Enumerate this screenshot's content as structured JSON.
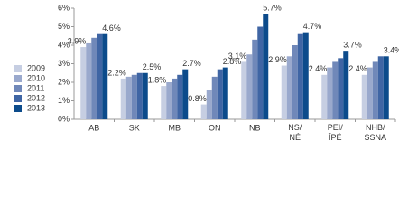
{
  "chart_data": {
    "type": "bar",
    "categories": [
      "AB",
      "SK",
      "MB",
      "ON",
      "NB",
      "NS/NÉ",
      "PEI/ÎPÉ",
      "NHB/SSNA"
    ],
    "series": [
      {
        "name": "2009",
        "color": "#c6cee2",
        "values": [
          3.9,
          2.2,
          1.8,
          0.8,
          3.1,
          2.9,
          2.4,
          2.4
        ],
        "value_labels": [
          "3.9%",
          "2.2%",
          "1.8%",
          "0.8%",
          "3.1%",
          "2.9%",
          "2.4%",
          "2.4%"
        ]
      },
      {
        "name": "2010",
        "color": "#9aa9cd",
        "values": [
          4.1,
          2.3,
          2.0,
          1.6,
          3.5,
          3.4,
          2.8,
          2.8
        ]
      },
      {
        "name": "2011",
        "color": "#7088b9",
        "values": [
          4.4,
          2.4,
          2.2,
          2.3,
          4.3,
          4.0,
          3.1,
          3.1
        ]
      },
      {
        "name": "2012",
        "color": "#3f65a4",
        "values": [
          4.6,
          2.5,
          2.4,
          2.7,
          5.0,
          4.6,
          3.3,
          3.4
        ]
      },
      {
        "name": "2013",
        "color": "#0c4b8b",
        "values": [
          4.6,
          2.5,
          2.7,
          2.8,
          5.7,
          4.7,
          3.7,
          3.4
        ],
        "value_labels": [
          "4.6%",
          "2.5%",
          "2.7%",
          "2.8%",
          "5.7%",
          "4.7%",
          "3.7%",
          "3.4%"
        ]
      }
    ],
    "ylim": [
      0,
      6
    ],
    "yticks": [
      {
        "value": 0,
        "label": "0%"
      },
      {
        "value": 1,
        "label": "1%"
      },
      {
        "value": 2,
        "label": "2%"
      },
      {
        "value": 3,
        "label": "3%"
      },
      {
        "value": 4,
        "label": "4%"
      },
      {
        "value": 5,
        "label": "5%"
      },
      {
        "value": 6,
        "label": "6%"
      }
    ],
    "grid": false
  }
}
